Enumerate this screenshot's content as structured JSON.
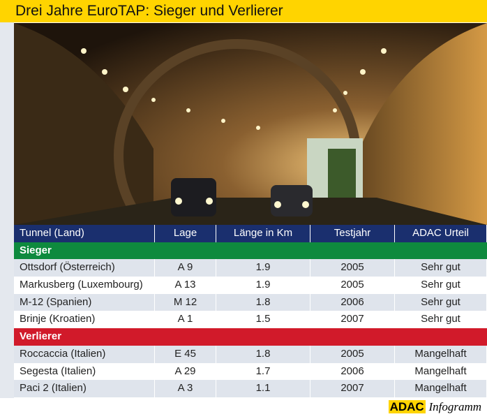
{
  "header": {
    "title": "Drei Jahre EuroTAP: Sieger und Verlierer"
  },
  "table": {
    "columns": [
      "Tunnel (Land)",
      "Lage",
      "Länge in Km",
      "Testjahr",
      "ADAC Urteil"
    ],
    "groups": [
      {
        "label": "Sieger",
        "rows": [
          [
            "Ottsdorf (Österreich)",
            "A 9",
            "1.9",
            "2005",
            "Sehr gut"
          ],
          [
            "Markusberg (Luxembourg)",
            "A 13",
            "1.9",
            "2005",
            "Sehr gut"
          ],
          [
            "M-12 (Spanien)",
            "M 12",
            "1.8",
            "2006",
            "Sehr gut"
          ],
          [
            "Brinje (Kroatien)",
            "A 1",
            "1.5",
            "2007",
            "Sehr gut"
          ]
        ]
      },
      {
        "label": "Verlierer",
        "rows": [
          [
            "Roccaccia (Italien)",
            "E 45",
            "1.8",
            "2005",
            "Mangelhaft"
          ],
          [
            "Segesta (Italien)",
            "A 29",
            "1.7",
            "2006",
            "Mangelhaft"
          ],
          [
            "Paci 2 (Italien)",
            "A 3",
            "1.1",
            "2007",
            "Mangelhaft"
          ]
        ]
      }
    ]
  },
  "footer": {
    "brand": "ADAC",
    "label": "Infogramm"
  }
}
